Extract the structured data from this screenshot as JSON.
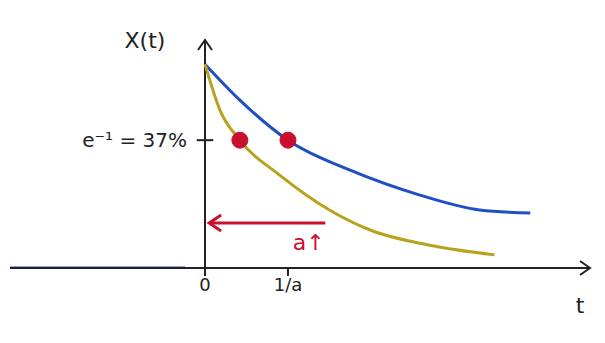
{
  "chart_data": {
    "type": "line",
    "xlabel": "t",
    "ylabel": "X(t)",
    "xlim": [
      -2.35,
      4.64
    ],
    "ylim": [
      0,
      0.66
    ],
    "xticks": [
      0,
      {
        "value": 1,
        "label": "1/a"
      }
    ],
    "yticks": [
      {
        "value": 0.37,
        "label": "e⁻¹ = 37%"
      }
    ],
    "grid": false,
    "series": [
      {
        "color": "#1f4fc4",
        "x": [
          -2.35,
          -0.24,
          -0.1,
          0,
          0.42,
          1,
          1.75,
          2.59,
          3.31,
          3.92
        ],
        "values": [
          0,
          0,
          null,
          0.59,
          0.486,
          0.37,
          0.283,
          0.211,
          0.168,
          0.159
        ]
      },
      {
        "color": "#b8a21c",
        "x": [
          0,
          0.18,
          0.42,
          0.9,
          1.5,
          1.99,
          2.71,
          3.49
        ],
        "values": [
          0.59,
          0.457,
          0.37,
          0.269,
          0.168,
          0.11,
          0.066,
          0.038
        ]
      }
    ],
    "points": [
      {
        "x": 1,
        "y": 0.37,
        "color": "#c8102e"
      },
      {
        "x": 0.42,
        "y": 0.37,
        "color": "#c8102e"
      }
    ],
    "annotations": [
      {
        "text": "a↑",
        "x": 1.25,
        "y": 0.07,
        "color": "#c8102e",
        "arrow_from": [
          1.45,
          0.13
        ],
        "arrow_to": [
          0.05,
          0.13
        ]
      }
    ]
  }
}
